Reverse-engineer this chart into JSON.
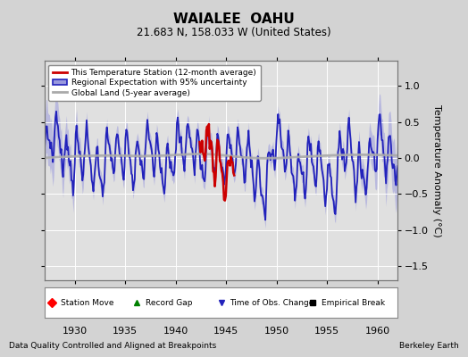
{
  "title": "WAIALEE  OAHU",
  "subtitle": "21.683 N, 158.033 W (United States)",
  "ylabel": "Temperature Anomaly (°C)",
  "xlabel_left": "Data Quality Controlled and Aligned at Breakpoints",
  "xlabel_right": "Berkeley Earth",
  "xlim": [
    1927.0,
    1962.0
  ],
  "ylim": [
    -1.7,
    1.35
  ],
  "yticks": [
    -1.5,
    -1.0,
    -0.5,
    0.0,
    0.5,
    1.0
  ],
  "xticks": [
    1930,
    1935,
    1940,
    1945,
    1950,
    1955,
    1960
  ],
  "bg_color": "#d3d3d3",
  "plot_bg_color": "#e0e0e0",
  "grid_color": "#ffffff",
  "regional_line_color": "#2222bb",
  "regional_fill_color": "#9999dd",
  "station_line_color": "#cc0000",
  "global_land_color": "#aaaaaa",
  "legend1_entries": [
    "This Temperature Station (12-month average)",
    "Regional Expectation with 95% uncertainty",
    "Global Land (5-year average)"
  ],
  "legend2_entries": [
    "Station Move",
    "Record Gap",
    "Time of Obs. Change",
    "Empirical Break"
  ],
  "seed": 7
}
